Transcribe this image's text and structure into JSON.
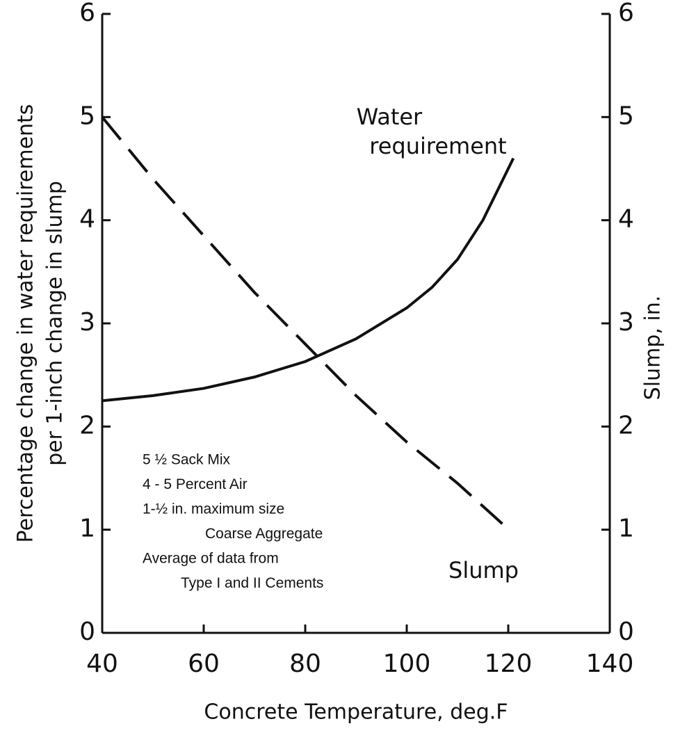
{
  "chart_data": {
    "type": "line",
    "xlabel": "Concrete Temperature, deg.F",
    "ylabel": [
      "Percentage change in water requirements",
      "per 1-inch change in slump"
    ],
    "y2label": "Slump, in.",
    "x": [
      40,
      50,
      60,
      70,
      80,
      90,
      100,
      105,
      110,
      115,
      121
    ],
    "series": [
      {
        "name": "Water requirement",
        "color": "#111111",
        "dash": false,
        "axis": "y",
        "x": [
          40,
          50,
          60,
          70,
          80,
          90,
          100,
          105,
          110,
          115,
          121
        ],
        "values": [
          2.25,
          2.3,
          2.37,
          2.48,
          2.63,
          2.85,
          3.15,
          3.35,
          3.62,
          4.0,
          4.6
        ]
      },
      {
        "name": "Slump",
        "color": "#111111",
        "dash": true,
        "axis": "y2",
        "x": [
          40,
          50,
          60,
          70,
          80,
          90,
          100,
          110,
          119
        ],
        "values": [
          5.0,
          4.4,
          3.85,
          3.3,
          2.8,
          2.3,
          1.85,
          1.45,
          1.05
        ]
      }
    ],
    "annotations": [
      "5 ½  Sack Mix",
      "4 - 5  Percent Air",
      "1-½ in.  maximum size",
      "Coarse  Aggregate",
      "Average of data from",
      "Type I and II Cements"
    ],
    "xlim": [
      40,
      140
    ],
    "xticks": [
      40,
      60,
      80,
      100,
      120,
      140
    ],
    "ylim": [
      0,
      6
    ],
    "yticks": [
      0,
      1,
      2,
      3,
      4,
      5,
      6
    ],
    "y2lim": [
      0,
      6
    ],
    "y2ticks": [
      0,
      1,
      2,
      3,
      4,
      5,
      6
    ],
    "grid": false
  }
}
